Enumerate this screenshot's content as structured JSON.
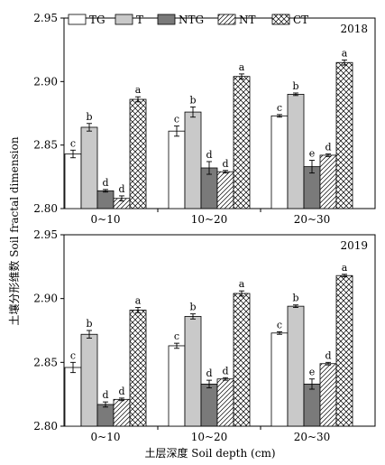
{
  "chart_data": [
    {
      "type": "bar",
      "annotation": "2018",
      "categories": [
        "0~10",
        "10~20",
        "20~30"
      ],
      "ylim": [
        2.8,
        2.95
      ],
      "yticks": [
        "2.80",
        "2.85",
        "2.90",
        "2.95"
      ],
      "series": [
        {
          "name": "TG",
          "values": [
            2.843,
            2.861,
            2.873
          ],
          "errors": [
            0.003,
            0.004,
            0.001
          ],
          "letters": [
            "c",
            "c",
            "c"
          ]
        },
        {
          "name": "T",
          "values": [
            2.864,
            2.876,
            2.89
          ],
          "errors": [
            0.003,
            0.004,
            0.001
          ],
          "letters": [
            "b",
            "b",
            "b"
          ]
        },
        {
          "name": "NTG",
          "values": [
            2.814,
            2.832,
            2.833
          ],
          "errors": [
            0.001,
            0.005,
            0.005
          ],
          "letters": [
            "d",
            "d",
            "e"
          ]
        },
        {
          "name": "NT",
          "values": [
            2.808,
            2.829,
            2.842
          ],
          "errors": [
            0.002,
            0.001,
            0.001
          ],
          "letters": [
            "d",
            "d",
            "d"
          ]
        },
        {
          "name": "CT",
          "values": [
            2.886,
            2.904,
            2.915
          ],
          "errors": [
            0.002,
            0.002,
            0.002
          ],
          "letters": [
            "a",
            "a",
            "a"
          ]
        }
      ]
    },
    {
      "type": "bar",
      "annotation": "2019",
      "categories": [
        "0~10",
        "10~20",
        "20~30"
      ],
      "ylim": [
        2.8,
        2.95
      ],
      "yticks": [
        "2.80",
        "2.85",
        "2.90",
        "2.95"
      ],
      "series": [
        {
          "name": "TG",
          "values": [
            2.846,
            2.863,
            2.873
          ],
          "errors": [
            0.004,
            0.002,
            0.001
          ],
          "letters": [
            "c",
            "c",
            "c"
          ]
        },
        {
          "name": "T",
          "values": [
            2.872,
            2.886,
            2.894
          ],
          "errors": [
            0.003,
            0.002,
            0.001
          ],
          "letters": [
            "b",
            "b",
            "b"
          ]
        },
        {
          "name": "NTG",
          "values": [
            2.817,
            2.833,
            2.833
          ],
          "errors": [
            0.002,
            0.003,
            0.004
          ],
          "letters": [
            "d",
            "d",
            "e"
          ]
        },
        {
          "name": "NT",
          "values": [
            2.821,
            2.837,
            2.849
          ],
          "errors": [
            0.001,
            0.001,
            0.001
          ],
          "letters": [
            "d",
            "d",
            "d"
          ]
        },
        {
          "name": "CT",
          "values": [
            2.891,
            2.904,
            2.918
          ],
          "errors": [
            0.002,
            0.002,
            0.001
          ],
          "letters": [
            "a",
            "a",
            "a"
          ]
        }
      ]
    }
  ],
  "legend": [
    "TG",
    "T",
    "NTG",
    "NT",
    "CT"
  ],
  "ylabel": "土壤分形维数 Soil fractal dimension",
  "xlabel": "土层深度 Soil depth (cm)",
  "series_styles": {
    "TG": "white",
    "T": "#c9c9c9",
    "NTG": "#7a7a7a",
    "NT": "diagonal-hatch",
    "CT": "cross-hatch"
  }
}
